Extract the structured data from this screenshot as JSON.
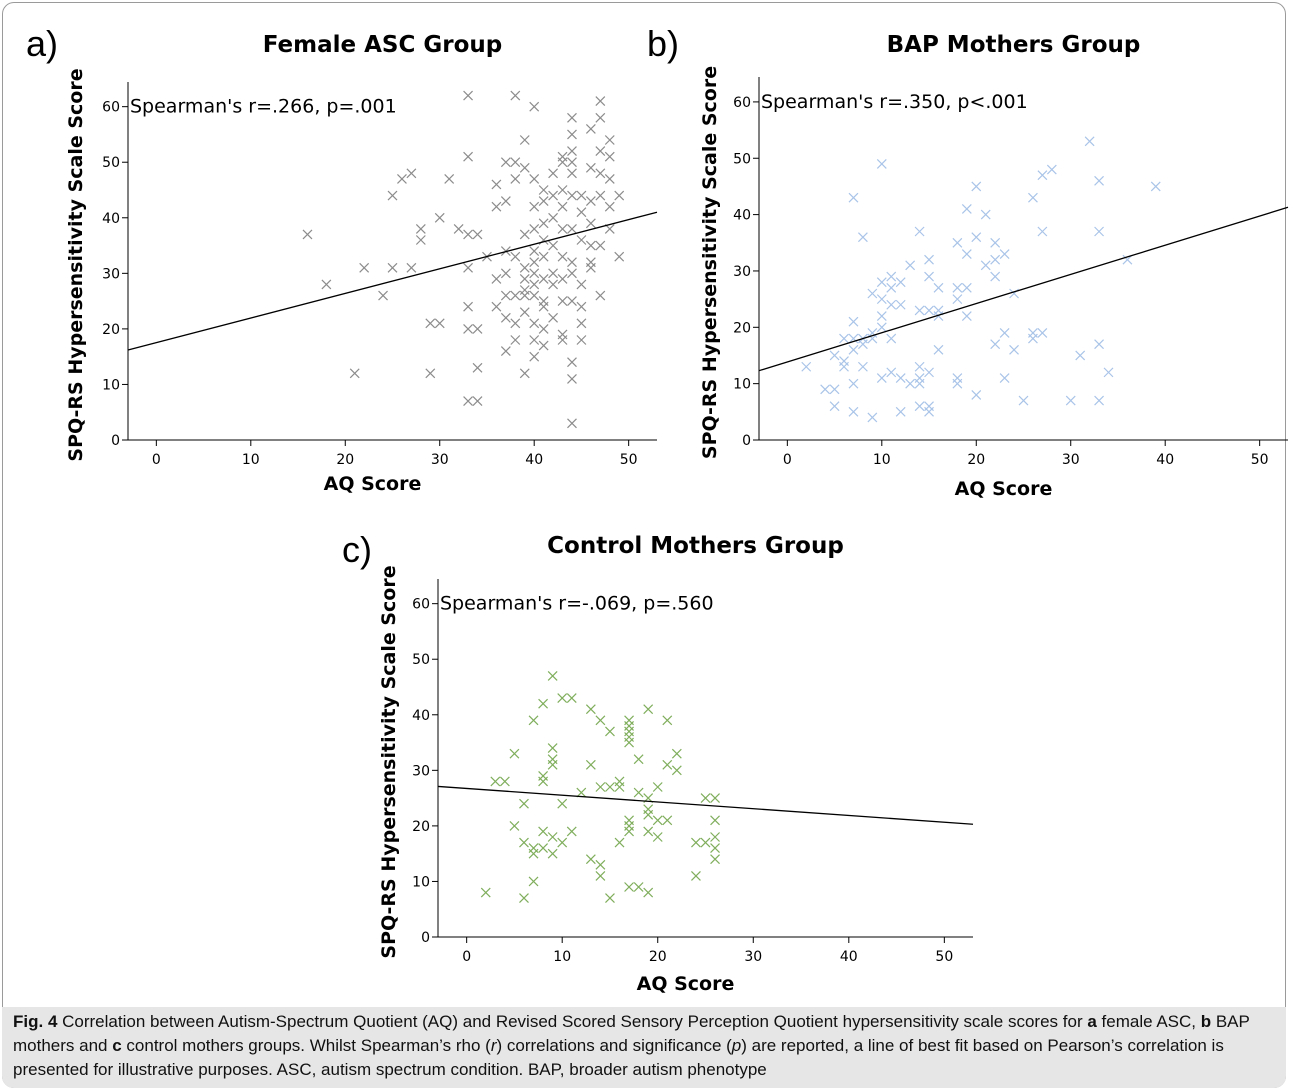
{
  "chart_data": [
    {
      "id": "a",
      "panel_label": "a)",
      "type": "scatter",
      "title": "Female ASC Group",
      "xlabel": "AQ Score",
      "ylabel": "SPQ-RS Hypersensitivity Scale Score",
      "annotation": "Spearman's r=.266, p=.001",
      "xlim": [
        -3,
        53
      ],
      "ylim": [
        0,
        63
      ],
      "xticks": [
        0,
        10,
        20,
        30,
        40,
        50
      ],
      "yticks": [
        0,
        10,
        20,
        30,
        40,
        50,
        60
      ],
      "marker_color": "#8c8c8c",
      "fit_line": [
        [
          -3,
          16.2
        ],
        [
          53,
          41
        ]
      ],
      "points": [
        [
          16,
          37
        ],
        [
          18,
          28
        ],
        [
          21,
          12
        ],
        [
          22,
          31
        ],
        [
          24,
          26
        ],
        [
          25,
          44
        ],
        [
          25,
          31
        ],
        [
          26,
          47
        ],
        [
          27,
          48
        ],
        [
          27,
          31
        ],
        [
          28,
          38
        ],
        [
          28,
          36
        ],
        [
          29,
          12
        ],
        [
          29,
          21
        ],
        [
          30,
          21
        ],
        [
          30,
          40
        ],
        [
          31,
          47
        ],
        [
          32,
          38
        ],
        [
          33,
          62
        ],
        [
          33,
          51
        ],
        [
          33,
          37
        ],
        [
          33,
          31
        ],
        [
          33,
          24
        ],
        [
          33,
          20
        ],
        [
          33,
          7
        ],
        [
          34,
          37
        ],
        [
          34,
          20
        ],
        [
          34,
          13
        ],
        [
          34,
          7
        ],
        [
          35,
          33
        ],
        [
          36,
          46
        ],
        [
          36,
          42
        ],
        [
          36,
          29
        ],
        [
          36,
          24
        ],
        [
          37,
          50
        ],
        [
          37,
          43
        ],
        [
          37,
          34
        ],
        [
          37,
          30
        ],
        [
          37,
          26
        ],
        [
          37,
          22
        ],
        [
          37,
          16
        ],
        [
          38,
          62
        ],
        [
          38,
          50
        ],
        [
          38,
          47
        ],
        [
          38,
          33
        ],
        [
          38,
          26
        ],
        [
          38,
          21
        ],
        [
          38,
          18
        ],
        [
          39,
          54
        ],
        [
          39,
          49
        ],
        [
          39,
          37
        ],
        [
          39,
          31
        ],
        [
          39,
          29
        ],
        [
          39,
          27
        ],
        [
          39,
          26
        ],
        [
          39,
          23
        ],
        [
          39,
          12
        ],
        [
          40,
          60
        ],
        [
          40,
          47
        ],
        [
          40,
          42
        ],
        [
          40,
          38
        ],
        [
          40,
          34
        ],
        [
          40,
          32
        ],
        [
          40,
          30
        ],
        [
          40,
          28
        ],
        [
          40,
          26
        ],
        [
          40,
          21
        ],
        [
          40,
          18
        ],
        [
          40,
          15
        ],
        [
          41,
          45
        ],
        [
          41,
          43
        ],
        [
          41,
          39
        ],
        [
          41,
          36
        ],
        [
          41,
          33
        ],
        [
          41,
          29
        ],
        [
          41,
          25
        ],
        [
          41,
          24
        ],
        [
          41,
          20
        ],
        [
          41,
          17
        ],
        [
          42,
          48
        ],
        [
          42,
          44
        ],
        [
          42,
          40
        ],
        [
          42,
          35
        ],
        [
          42,
          30
        ],
        [
          42,
          28
        ],
        [
          42,
          22
        ],
        [
          43,
          51
        ],
        [
          43,
          50
        ],
        [
          43,
          45
        ],
        [
          43,
          42
        ],
        [
          43,
          38
        ],
        [
          43,
          33
        ],
        [
          43,
          29
        ],
        [
          43,
          25
        ],
        [
          43,
          19
        ],
        [
          43,
          18
        ],
        [
          44,
          58
        ],
        [
          44,
          55
        ],
        [
          44,
          52
        ],
        [
          44,
          50
        ],
        [
          44,
          48
        ],
        [
          44,
          44
        ],
        [
          44,
          38
        ],
        [
          44,
          32
        ],
        [
          44,
          30
        ],
        [
          44,
          25
        ],
        [
          44,
          14
        ],
        [
          44,
          11
        ],
        [
          44,
          3
        ],
        [
          45,
          44
        ],
        [
          45,
          41
        ],
        [
          45,
          36
        ],
        [
          45,
          28
        ],
        [
          45,
          24
        ],
        [
          45,
          21
        ],
        [
          45,
          18
        ],
        [
          46,
          56
        ],
        [
          46,
          49
        ],
        [
          46,
          43
        ],
        [
          46,
          39
        ],
        [
          46,
          35
        ],
        [
          46,
          32
        ],
        [
          46,
          31
        ],
        [
          47,
          61
        ],
        [
          47,
          58
        ],
        [
          47,
          52
        ],
        [
          47,
          48
        ],
        [
          47,
          44
        ],
        [
          47,
          35
        ],
        [
          47,
          26
        ],
        [
          48,
          54
        ],
        [
          48,
          51
        ],
        [
          48,
          47
        ],
        [
          48,
          42
        ],
        [
          48,
          38
        ],
        [
          49,
          44
        ],
        [
          49,
          33
        ]
      ]
    },
    {
      "id": "b",
      "panel_label": "b)",
      "type": "scatter",
      "title": "BAP Mothers Group",
      "xlabel": "AQ Score",
      "ylabel": "SPQ-RS Hypersensitivity Scale Score",
      "annotation": "Spearman's r=.350, p<.001",
      "xlim": [
        -3,
        53
      ],
      "ylim": [
        0,
        63
      ],
      "xticks": [
        0,
        10,
        20,
        30,
        40,
        50
      ],
      "yticks": [
        0,
        10,
        20,
        30,
        40,
        50,
        60
      ],
      "marker_color": "#a9c4e8",
      "fit_line": [
        [
          -3,
          12.3
        ],
        [
          53,
          41.3
        ]
      ],
      "points": [
        [
          2,
          13
        ],
        [
          4,
          9
        ],
        [
          5,
          9
        ],
        [
          5,
          6
        ],
        [
          5,
          15
        ],
        [
          6,
          13
        ],
        [
          6,
          14
        ],
        [
          6,
          18
        ],
        [
          7,
          10
        ],
        [
          7,
          16
        ],
        [
          7,
          18
        ],
        [
          7,
          21
        ],
        [
          7,
          43
        ],
        [
          7,
          5
        ],
        [
          8,
          13
        ],
        [
          8,
          17
        ],
        [
          8,
          18
        ],
        [
          8,
          36
        ],
        [
          9,
          4
        ],
        [
          9,
          18
        ],
        [
          9,
          19
        ],
        [
          9,
          26
        ],
        [
          10,
          11
        ],
        [
          10,
          20
        ],
        [
          10,
          22
        ],
        [
          10,
          25
        ],
        [
          10,
          28
        ],
        [
          10,
          49
        ],
        [
          11,
          12
        ],
        [
          11,
          18
        ],
        [
          11,
          24
        ],
        [
          11,
          27
        ],
        [
          11,
          29
        ],
        [
          12,
          5
        ],
        [
          12,
          11
        ],
        [
          12,
          24
        ],
        [
          12,
          28
        ],
        [
          13,
          10
        ],
        [
          13,
          31
        ],
        [
          14,
          6
        ],
        [
          14,
          10
        ],
        [
          14,
          11
        ],
        [
          14,
          13
        ],
        [
          14,
          23
        ],
        [
          14,
          37
        ],
        [
          15,
          5
        ],
        [
          15,
          6
        ],
        [
          15,
          12
        ],
        [
          15,
          23
        ],
        [
          15,
          29
        ],
        [
          15,
          32
        ],
        [
          16,
          16
        ],
        [
          16,
          22
        ],
        [
          16,
          23
        ],
        [
          16,
          27
        ],
        [
          18,
          10
        ],
        [
          18,
          11
        ],
        [
          18,
          25
        ],
        [
          18,
          27
        ],
        [
          18,
          35
        ],
        [
          19,
          22
        ],
        [
          19,
          27
        ],
        [
          19,
          33
        ],
        [
          19,
          41
        ],
        [
          20,
          8
        ],
        [
          20,
          36
        ],
        [
          20,
          45
        ],
        [
          21,
          31
        ],
        [
          21,
          40
        ],
        [
          22,
          17
        ],
        [
          22,
          29
        ],
        [
          22,
          32
        ],
        [
          22,
          35
        ],
        [
          23,
          11
        ],
        [
          23,
          19
        ],
        [
          23,
          33
        ],
        [
          24,
          16
        ],
        [
          24,
          26
        ],
        [
          25,
          7
        ],
        [
          26,
          18
        ],
        [
          26,
          19
        ],
        [
          26,
          43
        ],
        [
          27,
          19
        ],
        [
          27,
          37
        ],
        [
          27,
          47
        ],
        [
          28,
          48
        ],
        [
          30,
          7
        ],
        [
          31,
          15
        ],
        [
          32,
          53
        ],
        [
          33,
          7
        ],
        [
          33,
          17
        ],
        [
          33,
          37
        ],
        [
          33,
          46
        ],
        [
          34,
          12
        ],
        [
          36,
          32
        ],
        [
          39,
          45
        ]
      ]
    },
    {
      "id": "c",
      "panel_label": "c)",
      "type": "scatter",
      "title": "Control Mothers Group",
      "xlabel": "AQ Score",
      "ylabel": "SPQ-RS Hypersensitivity Scale Score",
      "annotation": "Spearman's r=-.069, p=.560",
      "xlim": [
        -3,
        53
      ],
      "ylim": [
        0,
        63
      ],
      "xticks": [
        0,
        10,
        20,
        30,
        40,
        50
      ],
      "yticks": [
        0,
        10,
        20,
        30,
        40,
        50,
        60
      ],
      "marker_color": "#7fae5c",
      "fit_line": [
        [
          -3,
          27.1
        ],
        [
          53,
          20.3
        ]
      ],
      "points": [
        [
          2,
          8
        ],
        [
          3,
          28
        ],
        [
          4,
          28
        ],
        [
          5,
          33
        ],
        [
          5,
          20
        ],
        [
          6,
          24
        ],
        [
          6,
          17
        ],
        [
          6,
          7
        ],
        [
          7,
          39
        ],
        [
          7,
          16
        ],
        [
          7,
          15
        ],
        [
          7,
          10
        ],
        [
          8,
          42
        ],
        [
          8,
          29
        ],
        [
          8,
          28
        ],
        [
          8,
          19
        ],
        [
          8,
          16
        ],
        [
          9,
          47
        ],
        [
          9,
          34
        ],
        [
          9,
          32
        ],
        [
          9,
          31
        ],
        [
          9,
          18
        ],
        [
          9,
          15
        ],
        [
          10,
          43
        ],
        [
          10,
          24
        ],
        [
          10,
          17
        ],
        [
          11,
          43
        ],
        [
          11,
          19
        ],
        [
          12,
          26
        ],
        [
          13,
          41
        ],
        [
          13,
          31
        ],
        [
          13,
          14
        ],
        [
          14,
          39
        ],
        [
          14,
          27
        ],
        [
          14,
          13
        ],
        [
          14,
          11
        ],
        [
          15,
          37
        ],
        [
          15,
          27
        ],
        [
          15,
          7
        ],
        [
          16,
          28
        ],
        [
          16,
          27
        ],
        [
          16,
          17
        ],
        [
          17,
          39
        ],
        [
          17,
          38
        ],
        [
          17,
          37
        ],
        [
          17,
          36
        ],
        [
          17,
          35
        ],
        [
          17,
          21
        ],
        [
          17,
          20
        ],
        [
          17,
          19
        ],
        [
          17,
          9
        ],
        [
          18,
          32
        ],
        [
          18,
          26
        ],
        [
          18,
          9
        ],
        [
          19,
          41
        ],
        [
          19,
          25
        ],
        [
          19,
          23
        ],
        [
          19,
          22
        ],
        [
          19,
          19
        ],
        [
          19,
          8
        ],
        [
          20,
          27
        ],
        [
          20,
          21
        ],
        [
          20,
          18
        ],
        [
          21,
          39
        ],
        [
          21,
          31
        ],
        [
          21,
          21
        ],
        [
          22,
          33
        ],
        [
          22,
          30
        ],
        [
          24,
          17
        ],
        [
          24,
          11
        ],
        [
          25,
          25
        ],
        [
          25,
          17
        ],
        [
          26,
          25
        ],
        [
          26,
          21
        ],
        [
          26,
          18
        ],
        [
          26,
          16
        ],
        [
          26,
          14
        ]
      ]
    }
  ],
  "caption": {
    "fig_label": "Fig. 4",
    "part1": " Correlation between Autism-Spectrum Quotient (AQ) and Revised Scored Sensory Perception Quotient hypersensitivity scale scores for ",
    "a": "a",
    "part2": " female ASC, ",
    "b": "b",
    "part3": " BAP mothers and ",
    "c": "c",
    "part4": " control mothers groups. Whilst Spearman’s rho (",
    "r": "r",
    "part5": ") correlations and significance (",
    "p": "p",
    "part6": ") are reported, a line of best fit based on Pearson’s correlation is presented for illustrative purposes. ASC, autism spectrum condition. BAP, broader autism phenotype"
  }
}
